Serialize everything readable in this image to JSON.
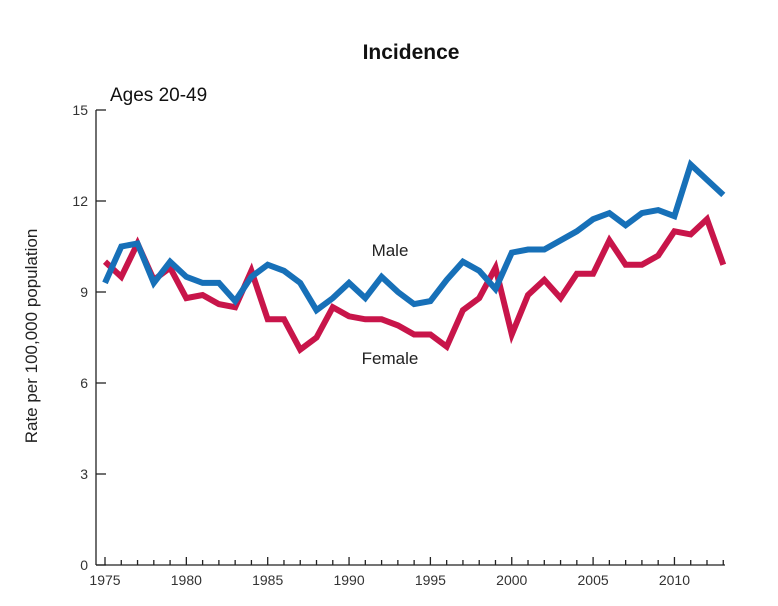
{
  "chart_data": {
    "type": "line",
    "title": "Incidence",
    "subtitle": "Ages 20-49",
    "xlabel": "",
    "ylabel": "Rate per 100,000 population",
    "xlim": [
      1975,
      2013
    ],
    "ylim": [
      0,
      15
    ],
    "x_ticks": [
      1975,
      1980,
      1985,
      1990,
      1995,
      2000,
      2005,
      2010
    ],
    "y_ticks": [
      0,
      3,
      6,
      9,
      12,
      15
    ],
    "grid": false,
    "legend": "none",
    "x": [
      1975,
      1976,
      1977,
      1978,
      1979,
      1980,
      1981,
      1982,
      1983,
      1984,
      1985,
      1986,
      1987,
      1988,
      1989,
      1990,
      1991,
      1992,
      1993,
      1994,
      1995,
      1996,
      1997,
      1998,
      1999,
      2000,
      2001,
      2002,
      2003,
      2004,
      2005,
      2006,
      2007,
      2008,
      2009,
      2010,
      2011,
      2012,
      2013
    ],
    "series": [
      {
        "name": "Female",
        "color": "#c8154a",
        "values": [
          10.0,
          9.5,
          10.6,
          9.4,
          9.8,
          8.8,
          8.9,
          8.6,
          8.5,
          9.7,
          8.1,
          8.1,
          7.1,
          7.5,
          8.5,
          8.2,
          8.1,
          8.1,
          7.9,
          7.6,
          7.6,
          7.2,
          8.4,
          8.8,
          9.8,
          7.6,
          8.9,
          9.4,
          8.8,
          9.6,
          9.6,
          10.7,
          9.9,
          9.9,
          10.2,
          11.0,
          10.9,
          11.4,
          9.9
        ]
      },
      {
        "name": "Male",
        "color": "#1770b8",
        "values": [
          9.3,
          10.5,
          10.6,
          9.3,
          10.0,
          9.5,
          9.3,
          9.3,
          8.7,
          9.5,
          9.9,
          9.7,
          9.3,
          8.4,
          8.8,
          9.3,
          8.8,
          9.5,
          9.0,
          8.6,
          8.7,
          9.4,
          10.0,
          9.7,
          9.1,
          10.3,
          10.4,
          10.4,
          10.7,
          11.0,
          11.4,
          11.6,
          11.2,
          11.6,
          11.7,
          11.5,
          13.2,
          12.7,
          12.2
        ]
      }
    ]
  }
}
